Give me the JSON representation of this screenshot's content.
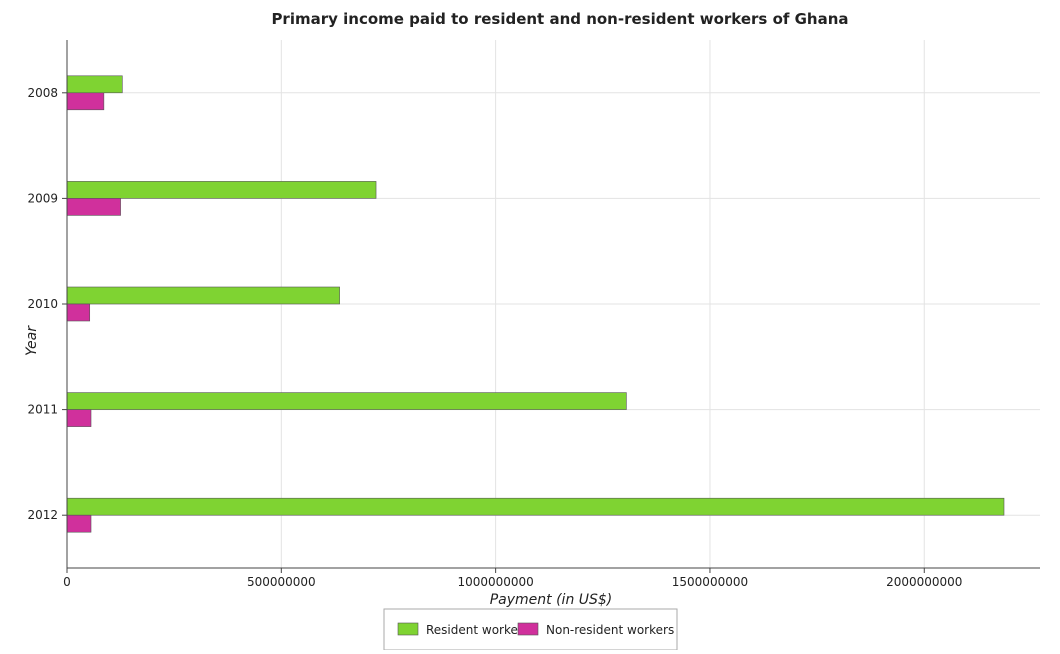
{
  "chart_data": {
    "type": "bar",
    "orientation": "horizontal",
    "title": "Primary income paid to resident and non-resident workers of Ghana",
    "xlabel": "Payment (in US$)",
    "ylabel": "Year",
    "categories": [
      "2008",
      "2009",
      "2010",
      "2011",
      "2012"
    ],
    "series": [
      {
        "name": "Resident workers",
        "color": "#7fd332",
        "values": [
          129000000,
          721000000,
          636000000,
          1305000000,
          2186000000
        ]
      },
      {
        "name": "Non-resident workers",
        "color": "#d0309c",
        "values": [
          86000000,
          125000000,
          53000000,
          56000000,
          56000000
        ]
      }
    ],
    "xlim": [
      0,
      2270000000
    ],
    "xticks": [
      0,
      500000000,
      1000000000,
      1500000000,
      2000000000
    ],
    "xtick_labels": [
      "0",
      "500000000",
      "1000000000",
      "1500000000",
      "2000000000"
    ],
    "grid": true,
    "legend_position": "bottom-center"
  }
}
